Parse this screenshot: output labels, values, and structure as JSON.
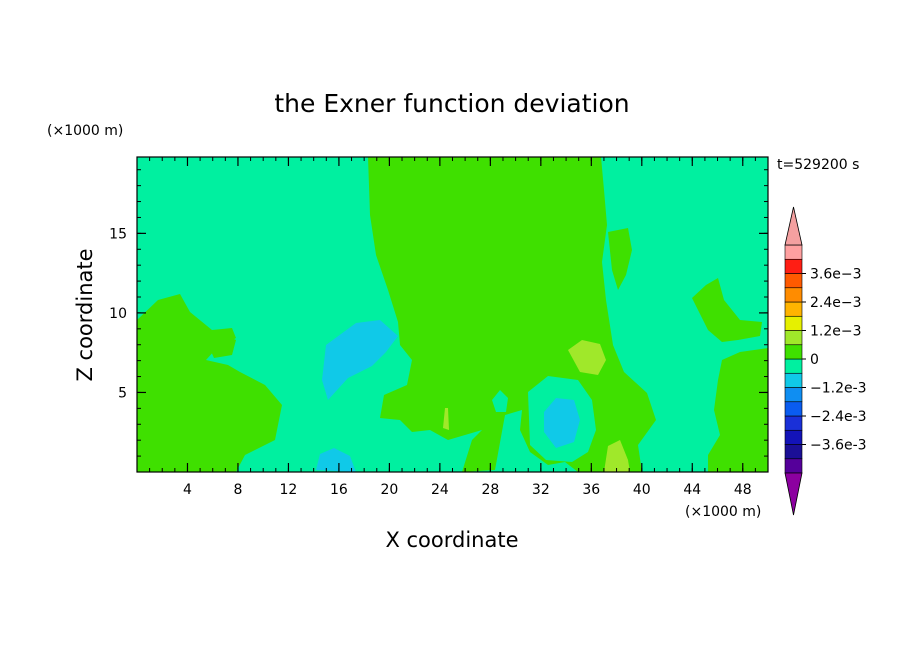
{
  "chart_data": {
    "type": "contour",
    "title": "the Exner function deviation",
    "xlabel": "X coordinate",
    "ylabel": "Z coordinate",
    "x_unit": "(×1000 m)",
    "y_unit": "(×1000 m)",
    "time_label": "t=529200 s",
    "xlim": [
      0,
      50
    ],
    "ylim": [
      0,
      19.8
    ],
    "x_ticks": [
      "4",
      "8",
      "12",
      "16",
      "20",
      "24",
      "28",
      "32",
      "36",
      "40",
      "44",
      "48"
    ],
    "y_ticks": [
      "5",
      "10",
      "15"
    ],
    "colorbar": {
      "labels": [
        "3.6e-3",
        "2.4e-3",
        "1.2e-3",
        "0",
        "-1.2e-3",
        "-2.4e-3",
        "-3.6e-3"
      ],
      "levels": [
        -0.0042,
        -0.0036,
        -0.003,
        -0.0024,
        -0.0018,
        -0.0012,
        -0.0006,
        0,
        0.0006,
        0.0012,
        0.0018,
        0.0024,
        0.003,
        0.0036,
        0.0042
      ],
      "colors_bottom_to_top": [
        "#55009a",
        "#1b0f96",
        "#1313b8",
        "#1a30d8",
        "#0a5cf0",
        "#0f8ef2",
        "#10c9e8",
        "#00f0a0",
        "#3fe000",
        "#a0e82a",
        "#e6f000",
        "#ffb400",
        "#ff8c00",
        "#ff5a00",
        "#ff1e14",
        "#ffa0a0"
      ],
      "under_color": "#8c00a0",
      "over_color": "#f4a0a0"
    },
    "regions": [
      {
        "name": "background",
        "range": "-6e-4 to 0",
        "color": "#00f0a0"
      },
      {
        "name": "central-positive-band",
        "range": "0 to 6e-4",
        "color": "#3fe000",
        "x_extent": [
          19,
          38
        ],
        "z_extent": [
          0,
          19.8
        ]
      },
      {
        "name": "lower-left-positive",
        "range": "0 to 6e-4",
        "color": "#3fe000",
        "x_extent": [
          0,
          12
        ],
        "z_extent": [
          0,
          11
        ]
      },
      {
        "name": "lower-right-positive",
        "range": "0 to 6e-4",
        "color": "#3fe000",
        "x_extent": [
          44,
          50
        ],
        "z_extent": [
          0,
          11
        ]
      },
      {
        "name": "negative-blob-1",
        "range": "-1.2e-3 to -6e-4",
        "color": "#10c9e8",
        "x_center": 17.5,
        "z_center": 7
      },
      {
        "name": "negative-blob-2",
        "range": "-1.2e-3 to -6e-4",
        "color": "#10c9e8",
        "x_center": 33.5,
        "z_center": 3
      },
      {
        "name": "positive-spot",
        "range": "6e-4 to 1.2e-3",
        "color": "#a0e82a",
        "x_center": 36.5,
        "z_center": 7.5
      }
    ]
  }
}
